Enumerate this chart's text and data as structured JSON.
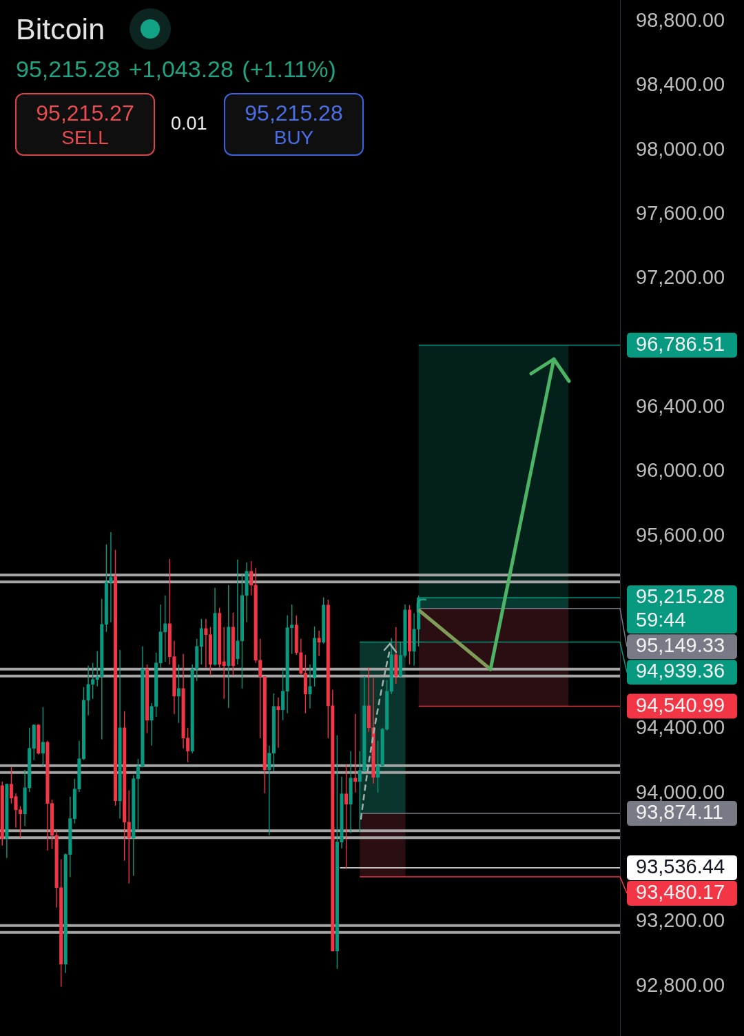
{
  "chart_data": {
    "type": "candlestick",
    "title": "Bitcoin",
    "subtitle": "95,215.28 +1,043.28 (+1.11%)",
    "annotations": [
      "95,215.27",
      "SELL",
      "0.01",
      "95,215.28",
      "BUY"
    ],
    "categories": [
      null,
      null,
      null,
      null,
      null,
      null,
      null,
      null,
      null,
      null,
      null,
      null,
      null,
      null,
      null,
      null,
      null,
      null,
      null,
      null,
      null,
      null,
      null,
      null,
      null,
      null,
      null,
      null,
      null,
      null,
      null,
      null,
      null,
      null,
      null,
      null,
      null,
      null,
      null,
      null,
      null,
      null,
      null,
      null,
      null,
      null,
      null,
      null,
      null,
      null,
      null,
      null,
      null,
      null,
      null,
      null,
      null,
      null,
      null,
      null,
      null,
      null,
      null,
      null,
      null,
      null,
      null,
      null,
      null,
      null,
      null,
      null,
      null,
      null,
      null,
      null,
      null,
      null,
      null,
      null,
      null,
      null,
      null,
      null,
      null,
      null,
      null,
      null,
      null,
      null,
      null,
      null,
      null,
      null,
      null,
      null,
      null,
      null,
      null,
      null,
      null,
      null,
      null,
      null,
      null,
      null,
      null,
      null,
      null,
      null,
      null,
      null,
      null,
      null,
      null,
      null,
      null,
      null,
      null,
      null,
      null,
      null,
      null,
      null,
      null,
      null,
      null,
      null,
      null,
      null,
      null,
      null,
      null,
      null,
      null,
      null,
      null
    ],
    "ohlc": [
      [
        94047,
        94073,
        93674,
        93717
      ],
      [
        93717,
        94060,
        93597,
        94056
      ],
      [
        94056,
        94163,
        93936,
        93970
      ],
      [
        93979,
        94000,
        93786,
        93897
      ],
      [
        93897,
        93919,
        93721,
        93872
      ],
      [
        93872,
        94146,
        93795,
        94034
      ],
      [
        94034,
        94407,
        94008,
        94279
      ],
      [
        94279,
        94428,
        94206,
        94424
      ],
      [
        94424,
        94430,
        94240,
        94249
      ],
      [
        94249,
        94536,
        94167,
        94317
      ],
      [
        94317,
        94326,
        93644,
        93936
      ],
      [
        93936,
        93961,
        93653,
        93738
      ],
      [
        93738,
        93768,
        93288,
        93413
      ],
      [
        93413,
        93589,
        92796,
        92937
      ],
      [
        92937,
        93625,
        92882,
        93619
      ],
      [
        93619,
        93979,
        93478,
        93842
      ],
      [
        93842,
        94090,
        93812,
        94026
      ],
      [
        94026,
        94326,
        94008,
        94214
      ],
      [
        94214,
        94660,
        94206,
        94578
      ],
      [
        94578,
        94793,
        94484,
        94677
      ],
      [
        94677,
        94810,
        94587,
        94707
      ],
      [
        94707,
        94883,
        94664,
        94724
      ],
      [
        94724,
        95209,
        94334,
        95050
      ],
      [
        95050,
        95547,
        95003,
        95312
      ],
      [
        95312,
        95624,
        95063,
        95342
      ],
      [
        95350,
        95513,
        93923,
        93953
      ],
      [
        93953,
        94891,
        93842,
        94407
      ],
      [
        94407,
        94510,
        93580,
        93820
      ],
      [
        93820,
        94017,
        93439,
        93721
      ],
      [
        93721,
        94111,
        93486,
        94090
      ],
      [
        94090,
        94214,
        93777,
        94167
      ],
      [
        94167,
        94913,
        94160,
        94771
      ],
      [
        94771,
        94801,
        94373,
        94454
      ],
      [
        94454,
        94560,
        94296,
        94540
      ],
      [
        94540,
        94874,
        94475,
        94810
      ],
      [
        94810,
        95174,
        94780,
        95003
      ],
      [
        95003,
        95230,
        94818,
        95054
      ],
      [
        95054,
        95457,
        94801,
        94849
      ],
      [
        94849,
        94947,
        94493,
        94604
      ],
      [
        94604,
        94801,
        94437,
        94651
      ],
      [
        94651,
        94866,
        94279,
        94343
      ],
      [
        94343,
        94407,
        94193,
        94262
      ],
      [
        94262,
        94801,
        94249,
        94771
      ],
      [
        94771,
        94960,
        94699,
        94913
      ],
      [
        94913,
        95084,
        94801,
        95024
      ],
      [
        95024,
        95084,
        94780,
        94986
      ],
      [
        94986,
        95033,
        94733,
        94801
      ],
      [
        94801,
        95277,
        94793,
        95119
      ],
      [
        95119,
        95153,
        94780,
        94801
      ],
      [
        94818,
        95033,
        94587,
        94793
      ],
      [
        94793,
        95294,
        94531,
        95033
      ],
      [
        95033,
        95123,
        94733,
        94793
      ],
      [
        94836,
        95453,
        94801,
        94947
      ],
      [
        94947,
        95359,
        94651,
        95230
      ],
      [
        95230,
        95436,
        95063,
        95380
      ],
      [
        95380,
        95444,
        95230,
        95294
      ],
      [
        95294,
        95402,
        94810,
        94827
      ],
      [
        94827,
        94960,
        94343,
        94724
      ],
      [
        94724,
        94730,
        94000,
        94146
      ],
      [
        94146,
        94296,
        93738,
        94249
      ],
      [
        94249,
        94621,
        94137,
        94540
      ],
      [
        94540,
        94596,
        94283,
        94519
      ],
      [
        94519,
        94771,
        94454,
        94634
      ],
      [
        94634,
        95106,
        94497,
        95029
      ],
      [
        95029,
        95174,
        94866,
        95046
      ],
      [
        95046,
        95106,
        94861,
        94874
      ],
      [
        94874,
        94960,
        94737,
        94746
      ],
      [
        94746,
        94861,
        94497,
        94617
      ],
      [
        94617,
        94801,
        94527,
        94664
      ],
      [
        94716,
        95037,
        94664,
        94964
      ],
      [
        94964,
        95011,
        94853,
        94939
      ],
      [
        94939,
        95217,
        94930,
        95170
      ],
      [
        95170,
        95204,
        94343,
        94544
      ],
      [
        94544,
        94643,
        93015,
        93019
      ],
      [
        93019,
        94360,
        92907,
        93696
      ],
      [
        93696,
        94103,
        93657,
        93996
      ],
      [
        93996,
        94180,
        93529,
        93932
      ],
      [
        93932,
        94262,
        93751,
        94094
      ],
      [
        94094,
        94493,
        94004,
        94073
      ],
      [
        94073,
        94262,
        93760,
        94141
      ],
      [
        94141,
        94728,
        94133,
        94544
      ],
      [
        94544,
        94780,
        94381,
        94407
      ],
      [
        94407,
        94716,
        94060,
        94099
      ],
      [
        94099,
        94326,
        94004,
        94171
      ],
      [
        94171,
        94407,
        94163,
        94398
      ],
      [
        94398,
        94703,
        94390,
        94634
      ],
      [
        94634,
        94964,
        94617,
        94861
      ],
      [
        94861,
        95033,
        94681,
        94728
      ],
      [
        94728,
        94939,
        94716,
        94857
      ],
      [
        94857,
        95174,
        94844,
        95140
      ],
      [
        95140,
        95170,
        94801,
        94883
      ],
      [
        94883,
        95119,
        94793,
        95020
      ],
      [
        95020,
        95230,
        94913,
        95215.28
      ],
      null,
      null,
      null,
      null,
      null,
      null,
      null,
      null,
      null,
      null,
      null,
      null,
      null,
      null,
      null,
      null,
      null,
      null,
      null,
      null,
      null,
      null,
      null,
      null,
      null,
      null,
      null,
      null,
      null,
      null,
      null,
      null,
      null,
      null,
      null,
      null,
      null,
      null,
      null,
      null,
      null,
      null,
      null,
      null
    ],
    "colors": [
      "#f23645",
      "#089981",
      "#f23645",
      "#f23645",
      "#f23645",
      "#089981",
      "#089981",
      "#089981",
      "#f23645",
      "#089981",
      "#f23645",
      "#f23645",
      "#f23645",
      "#f23645",
      "#089981",
      "#089981",
      "#089981",
      "#089981",
      "#089981",
      "#089981",
      "#089981",
      "#089981",
      "#089981",
      "#089981",
      "#089981",
      "#f23645",
      "#089981",
      "#f23645",
      "#f23645",
      "#089981",
      "#089981",
      "#089981",
      "#f23645",
      "#089981",
      "#089981",
      "#089981",
      "#089981",
      "#f23645",
      "#f23645",
      "#089981",
      "#f23645",
      "#f23645",
      "#089981",
      "#089981",
      "#089981",
      "#f23645",
      "#f23645",
      "#089981",
      "#f23645",
      "#f23645",
      "#089981",
      "#f23645",
      "#089981",
      "#089981",
      "#089981",
      "#f23645",
      "#f23645",
      "#f23645",
      "#f23645",
      "#089981",
      "#089981",
      "#f23645",
      "#089981",
      "#089981",
      "#089981",
      "#f23645",
      "#f23645",
      "#f23645",
      "#089981",
      "#089981",
      "#f23645",
      "#089981",
      "#f23645",
      "#f23645",
      "#089981",
      "#089981",
      "#f23645",
      "#089981",
      "#f23645",
      "#089981",
      "#089981",
      "#f23645",
      "#f23645",
      "#089981",
      "#089981",
      "#089981",
      "#089981",
      "#f23645",
      "#089981",
      "#089981",
      "#f23645",
      "#089981",
      "#089981",
      null,
      null,
      null,
      null,
      null,
      null,
      null,
      null,
      null,
      null,
      null,
      null,
      null,
      null,
      null,
      null,
      null,
      null,
      null,
      null,
      null,
      null,
      null,
      null,
      null,
      null,
      null,
      null,
      null,
      null,
      null,
      null,
      null,
      null,
      null,
      null,
      null,
      null,
      null,
      null,
      null,
      null,
      null,
      null
    ],
    "ylim": [
      92490,
      98933
    ],
    "yticks": [
      {
        "value": 98800,
        "label": "98,800.00"
      },
      {
        "value": 98400,
        "label": "98,400.00"
      },
      {
        "value": 98000,
        "label": "98,000.00"
      },
      {
        "value": 97600,
        "label": "97,600.00"
      },
      {
        "value": 97200,
        "label": "97,200.00"
      },
      {
        "value": 96400,
        "label": "96,400.00"
      },
      {
        "value": 96000,
        "label": "96,000.00"
      },
      {
        "value": 95600,
        "label": "95,600.00"
      },
      {
        "value": 94400,
        "label": "94,400.00"
      },
      {
        "value": 94000,
        "label": "94,000.00"
      },
      {
        "value": 93200,
        "label": "93,200.00"
      },
      {
        "value": 92800,
        "label": "92,800.00"
      }
    ],
    "tick_labels": "y",
    "bands": [
      {
        "axis": "y",
        "from": 95149.33,
        "to": 96786.51,
        "color": "#03201a"
      },
      {
        "axis": "y",
        "from": 95149.33,
        "to": 95215.28,
        "color": "#073a30"
      },
      {
        "axis": "y",
        "from": 94540.99,
        "to": 95149.33,
        "color": "#2a0e11"
      },
      {
        "axis": "y",
        "from": 93874.11,
        "to": 94939.36,
        "color": "#09352c"
      },
      {
        "axis": "y",
        "from": 93480.17,
        "to": 93874.11,
        "color": "#2a0e11"
      }
    ],
    "ref_lines": [
      {
        "axis": "y",
        "value": 95335,
        "color": "#a5a5a5",
        "line_style": "solid"
      },
      {
        "axis": "y",
        "value": 94750,
        "color": "#a5a5a5",
        "line_style": "solid"
      },
      {
        "axis": "y",
        "value": 94150,
        "color": "#a5a5a5",
        "line_style": "solid"
      },
      {
        "axis": "y",
        "value": 93745,
        "color": "#a5a5a5",
        "line_style": "solid"
      },
      {
        "axis": "y",
        "value": 93155,
        "color": "#a5a5a5",
        "line_style": "solid"
      },
      {
        "axis": "y",
        "value": 93536.44,
        "label": "93,536.44",
        "color": "#ffffff",
        "line_style": "solid"
      },
      {
        "axis": "y",
        "value": 96786.51,
        "label": "96,786.51",
        "color": "#089981",
        "line_style": "solid"
      },
      {
        "axis": "y",
        "value": 95215.28,
        "label": "95,215.28\n59:44",
        "color": "#089981",
        "line_style": "solid"
      },
      {
        "axis": "y",
        "value": 95149.33,
        "label": "95,149.33",
        "color": "#787b86",
        "line_style": "solid"
      },
      {
        "axis": "y",
        "value": 94939.36,
        "label": "94,939.36",
        "color": "#089981",
        "line_style": "solid"
      },
      {
        "axis": "y",
        "value": 94540.99,
        "label": "94,540.99",
        "color": "#f23645",
        "line_style": "solid"
      },
      {
        "axis": "y",
        "value": 93874.11,
        "label": "93,874.11",
        "color": "#787b86",
        "line_style": "solid"
      },
      {
        "axis": "y",
        "value": 93480.17,
        "label": "93,480.17",
        "color": "#f23645",
        "line_style": "solid"
      }
    ]
  }
}
